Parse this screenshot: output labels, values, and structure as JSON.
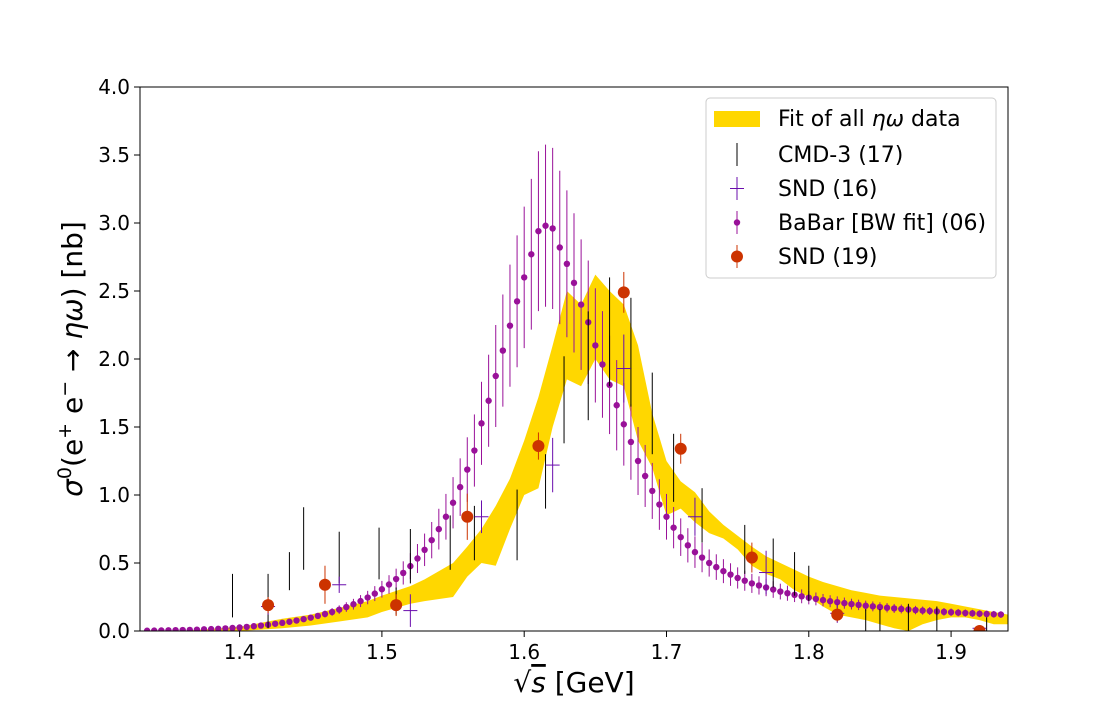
{
  "chart_data": {
    "type": "scatter",
    "xlabel": "√s [GeV]",
    "xlabel_parts": {
      "root": "√",
      "var": "s",
      "unit": " [GeV]"
    },
    "ylabel": "σ⁰(e⁺e⁻ → ηω) [nb]",
    "ylabel_parts": {
      "sym": "σ",
      "sup0": "0",
      "open": "(e",
      "plus": "+",
      "e2": " e",
      "minus": "−",
      "arrow": " → ",
      "eta": "η",
      "omega": "ω",
      "close": ") [nb]"
    },
    "xlim": [
      1.33,
      1.94
    ],
    "ylim": [
      0.0,
      4.0
    ],
    "x_ticks": [
      1.4,
      1.5,
      1.6,
      1.7,
      1.8,
      1.9
    ],
    "x_tick_labels": [
      "1.4",
      "1.5",
      "1.6",
      "1.7",
      "1.8",
      "1.9"
    ],
    "y_ticks": [
      0.0,
      0.5,
      1.0,
      1.5,
      2.0,
      2.5,
      3.0,
      3.5,
      4.0
    ],
    "y_tick_labels": [
      "0.0",
      "0.5",
      "1.0",
      "1.5",
      "2.0",
      "2.5",
      "3.0",
      "3.5",
      "4.0"
    ],
    "legend_position": "upper-right",
    "colors": {
      "fit_band": "#FFD700",
      "cmd3": "#000000",
      "snd16": "#6a0dad",
      "babar": "#991199",
      "snd19": "#CC3300"
    },
    "fit_band": {
      "name": "Fit of all ηω data",
      "name_parts": {
        "pre": "Fit of all ",
        "sym": "ηω",
        "post": " data"
      },
      "x": [
        1.36,
        1.4,
        1.43,
        1.45,
        1.47,
        1.49,
        1.5,
        1.52,
        1.53,
        1.55,
        1.56,
        1.57,
        1.58,
        1.59,
        1.6,
        1.61,
        1.62,
        1.63,
        1.64,
        1.65,
        1.66,
        1.67,
        1.68,
        1.69,
        1.7,
        1.71,
        1.72,
        1.73,
        1.74,
        1.75,
        1.76,
        1.77,
        1.78,
        1.79,
        1.8,
        1.81,
        1.82,
        1.83,
        1.84,
        1.85,
        1.86,
        1.87,
        1.88,
        1.89,
        1.9,
        1.91,
        1.92,
        1.93,
        1.94
      ],
      "upper": [
        0.0,
        0.03,
        0.09,
        0.12,
        0.17,
        0.22,
        0.26,
        0.33,
        0.38,
        0.5,
        0.62,
        0.75,
        0.92,
        1.12,
        1.4,
        1.72,
        2.1,
        2.5,
        2.4,
        2.62,
        2.5,
        2.4,
        2.1,
        1.6,
        1.25,
        1.1,
        1.02,
        0.88,
        0.78,
        0.7,
        0.62,
        0.55,
        0.5,
        0.45,
        0.4,
        0.36,
        0.33,
        0.3,
        0.28,
        0.26,
        0.25,
        0.24,
        0.23,
        0.22,
        0.2,
        0.18,
        0.16,
        0.14,
        0.12
      ],
      "lower": [
        0.0,
        0.0,
        0.02,
        0.04,
        0.07,
        0.1,
        0.14,
        0.2,
        0.22,
        0.25,
        0.4,
        0.5,
        0.48,
        0.75,
        1.0,
        1.05,
        1.5,
        1.85,
        1.8,
        2.0,
        1.85,
        1.8,
        1.4,
        1.2,
        0.85,
        0.9,
        0.8,
        0.72,
        0.68,
        0.6,
        0.48,
        0.42,
        0.38,
        0.3,
        0.25,
        0.18,
        0.12,
        0.1,
        0.08,
        0.05,
        0.02,
        0.0,
        0.05,
        0.08,
        0.1,
        0.1,
        0.08,
        0.05,
        0.05
      ]
    },
    "series": [
      {
        "name": "CMD-3 (17)",
        "marker": "errorbar",
        "points": [
          {
            "x": 1.395,
            "y": 0.26,
            "err": 0.16
          },
          {
            "x": 1.42,
            "y": 0.22,
            "err": 0.2
          },
          {
            "x": 1.435,
            "y": 0.44,
            "err": 0.14
          },
          {
            "x": 1.445,
            "y": 0.68,
            "err": 0.23
          },
          {
            "x": 1.47,
            "y": 0.54,
            "err": 0.19
          },
          {
            "x": 1.498,
            "y": 0.57,
            "err": 0.19
          },
          {
            "x": 1.51,
            "y": 0.22,
            "err": 0.1
          },
          {
            "x": 1.52,
            "y": 0.55,
            "err": 0.2
          },
          {
            "x": 1.548,
            "y": 0.65,
            "err": 0.2
          },
          {
            "x": 1.565,
            "y": 0.72,
            "err": 0.2
          },
          {
            "x": 1.595,
            "y": 0.78,
            "err": 0.26
          },
          {
            "x": 1.615,
            "y": 1.1,
            "err": 0.2
          },
          {
            "x": 1.628,
            "y": 1.7,
            "err": 0.32
          },
          {
            "x": 1.645,
            "y": 1.95,
            "err": 0.4
          },
          {
            "x": 1.66,
            "y": 2.2,
            "err": 0.4
          },
          {
            "x": 1.675,
            "y": 2.05,
            "err": 0.4
          },
          {
            "x": 1.69,
            "y": 1.6,
            "err": 0.3
          },
          {
            "x": 1.705,
            "y": 1.2,
            "err": 0.25
          },
          {
            "x": 1.725,
            "y": 0.85,
            "err": 0.2
          },
          {
            "x": 1.755,
            "y": 0.6,
            "err": 0.18
          },
          {
            "x": 1.775,
            "y": 0.5,
            "err": 0.18
          },
          {
            "x": 1.79,
            "y": 0.42,
            "err": 0.16
          },
          {
            "x": 1.8,
            "y": 0.35,
            "err": 0.13
          },
          {
            "x": 1.84,
            "y": 0.07,
            "err": 0.09
          },
          {
            "x": 1.85,
            "y": 0.07,
            "err": 0.09
          },
          {
            "x": 1.87,
            "y": 0.1,
            "err": 0.1
          },
          {
            "x": 1.89,
            "y": 0.09,
            "err": 0.09
          },
          {
            "x": 1.925,
            "y": 0.05,
            "err": 0.05
          }
        ]
      },
      {
        "name": "SND (16)",
        "marker": "plus",
        "points": [
          {
            "x": 1.42,
            "y": 0.18,
            "err": 0.06
          },
          {
            "x": 1.47,
            "y": 0.34,
            "err": 0.06
          },
          {
            "x": 1.52,
            "y": 0.15,
            "err": 0.12
          },
          {
            "x": 1.57,
            "y": 0.84,
            "err": 0.12
          },
          {
            "x": 1.62,
            "y": 1.22,
            "err": 0.2
          },
          {
            "x": 1.67,
            "y": 1.93,
            "err": 0.25
          },
          {
            "x": 1.72,
            "y": 0.84,
            "err": 0.14
          },
          {
            "x": 1.77,
            "y": 0.43,
            "err": 0.16
          },
          {
            "x": 1.82,
            "y": 0.13,
            "err": 0.07
          },
          {
            "x": 1.92,
            "y": 0.02,
            "err": 0.02
          }
        ]
      },
      {
        "name": "BaBar [BW fit] (06)",
        "marker": "small-dot",
        "x_start": 1.335,
        "x_step": 0.005,
        "y": [
          0.002,
          0.003,
          0.004,
          0.005,
          0.006,
          0.007,
          0.008,
          0.01,
          0.012,
          0.014,
          0.016,
          0.019,
          0.022,
          0.026,
          0.03,
          0.035,
          0.04,
          0.046,
          0.053,
          0.06,
          0.068,
          0.077,
          0.087,
          0.098,
          0.111,
          0.125,
          0.14,
          0.157,
          0.176,
          0.197,
          0.22,
          0.246,
          0.275,
          0.307,
          0.342,
          0.382,
          0.427,
          0.477,
          0.533,
          0.597,
          0.668,
          0.749,
          0.84,
          0.943,
          1.058,
          1.187,
          1.327,
          1.527,
          1.693,
          1.875,
          2.062,
          2.245,
          2.424,
          2.6,
          2.77,
          2.94,
          2.98,
          2.96,
          2.82,
          2.7,
          2.56,
          2.4,
          2.27,
          2.1,
          1.96,
          1.81,
          1.66,
          1.52,
          1.39,
          1.25,
          1.14,
          1.03,
          0.93,
          0.84,
          0.76,
          0.69,
          0.63,
          0.58,
          0.54,
          0.5,
          0.47,
          0.44,
          0.415,
          0.39,
          0.37,
          0.35,
          0.335,
          0.32,
          0.305,
          0.29,
          0.278,
          0.266,
          0.255,
          0.245,
          0.236,
          0.227,
          0.219,
          0.212,
          0.205,
          0.198,
          0.192,
          0.186,
          0.181,
          0.176,
          0.171,
          0.166,
          0.162,
          0.158,
          0.154,
          0.15,
          0.147,
          0.144,
          0.141,
          0.138,
          0.135,
          0.132,
          0.13,
          0.127,
          0.125,
          0.123,
          0.121
        ],
        "err_frac": 0.2
      },
      {
        "name": "SND (19)",
        "marker": "big-dot",
        "points": [
          {
            "x": 1.42,
            "y": 0.19,
            "err": 0.06
          },
          {
            "x": 1.46,
            "y": 0.34,
            "err": 0.14
          },
          {
            "x": 1.51,
            "y": 0.19,
            "err": 0.08
          },
          {
            "x": 1.56,
            "y": 0.84,
            "err": 0.17
          },
          {
            "x": 1.61,
            "y": 1.36,
            "err": 0.1
          },
          {
            "x": 1.67,
            "y": 2.49,
            "err": 0.15
          },
          {
            "x": 1.71,
            "y": 1.34,
            "err": 0.11
          },
          {
            "x": 1.76,
            "y": 0.54,
            "err": 0.11
          },
          {
            "x": 1.82,
            "y": 0.12,
            "err": 0.05
          },
          {
            "x": 1.92,
            "y": 0.0,
            "err": 0.02
          }
        ]
      }
    ]
  }
}
